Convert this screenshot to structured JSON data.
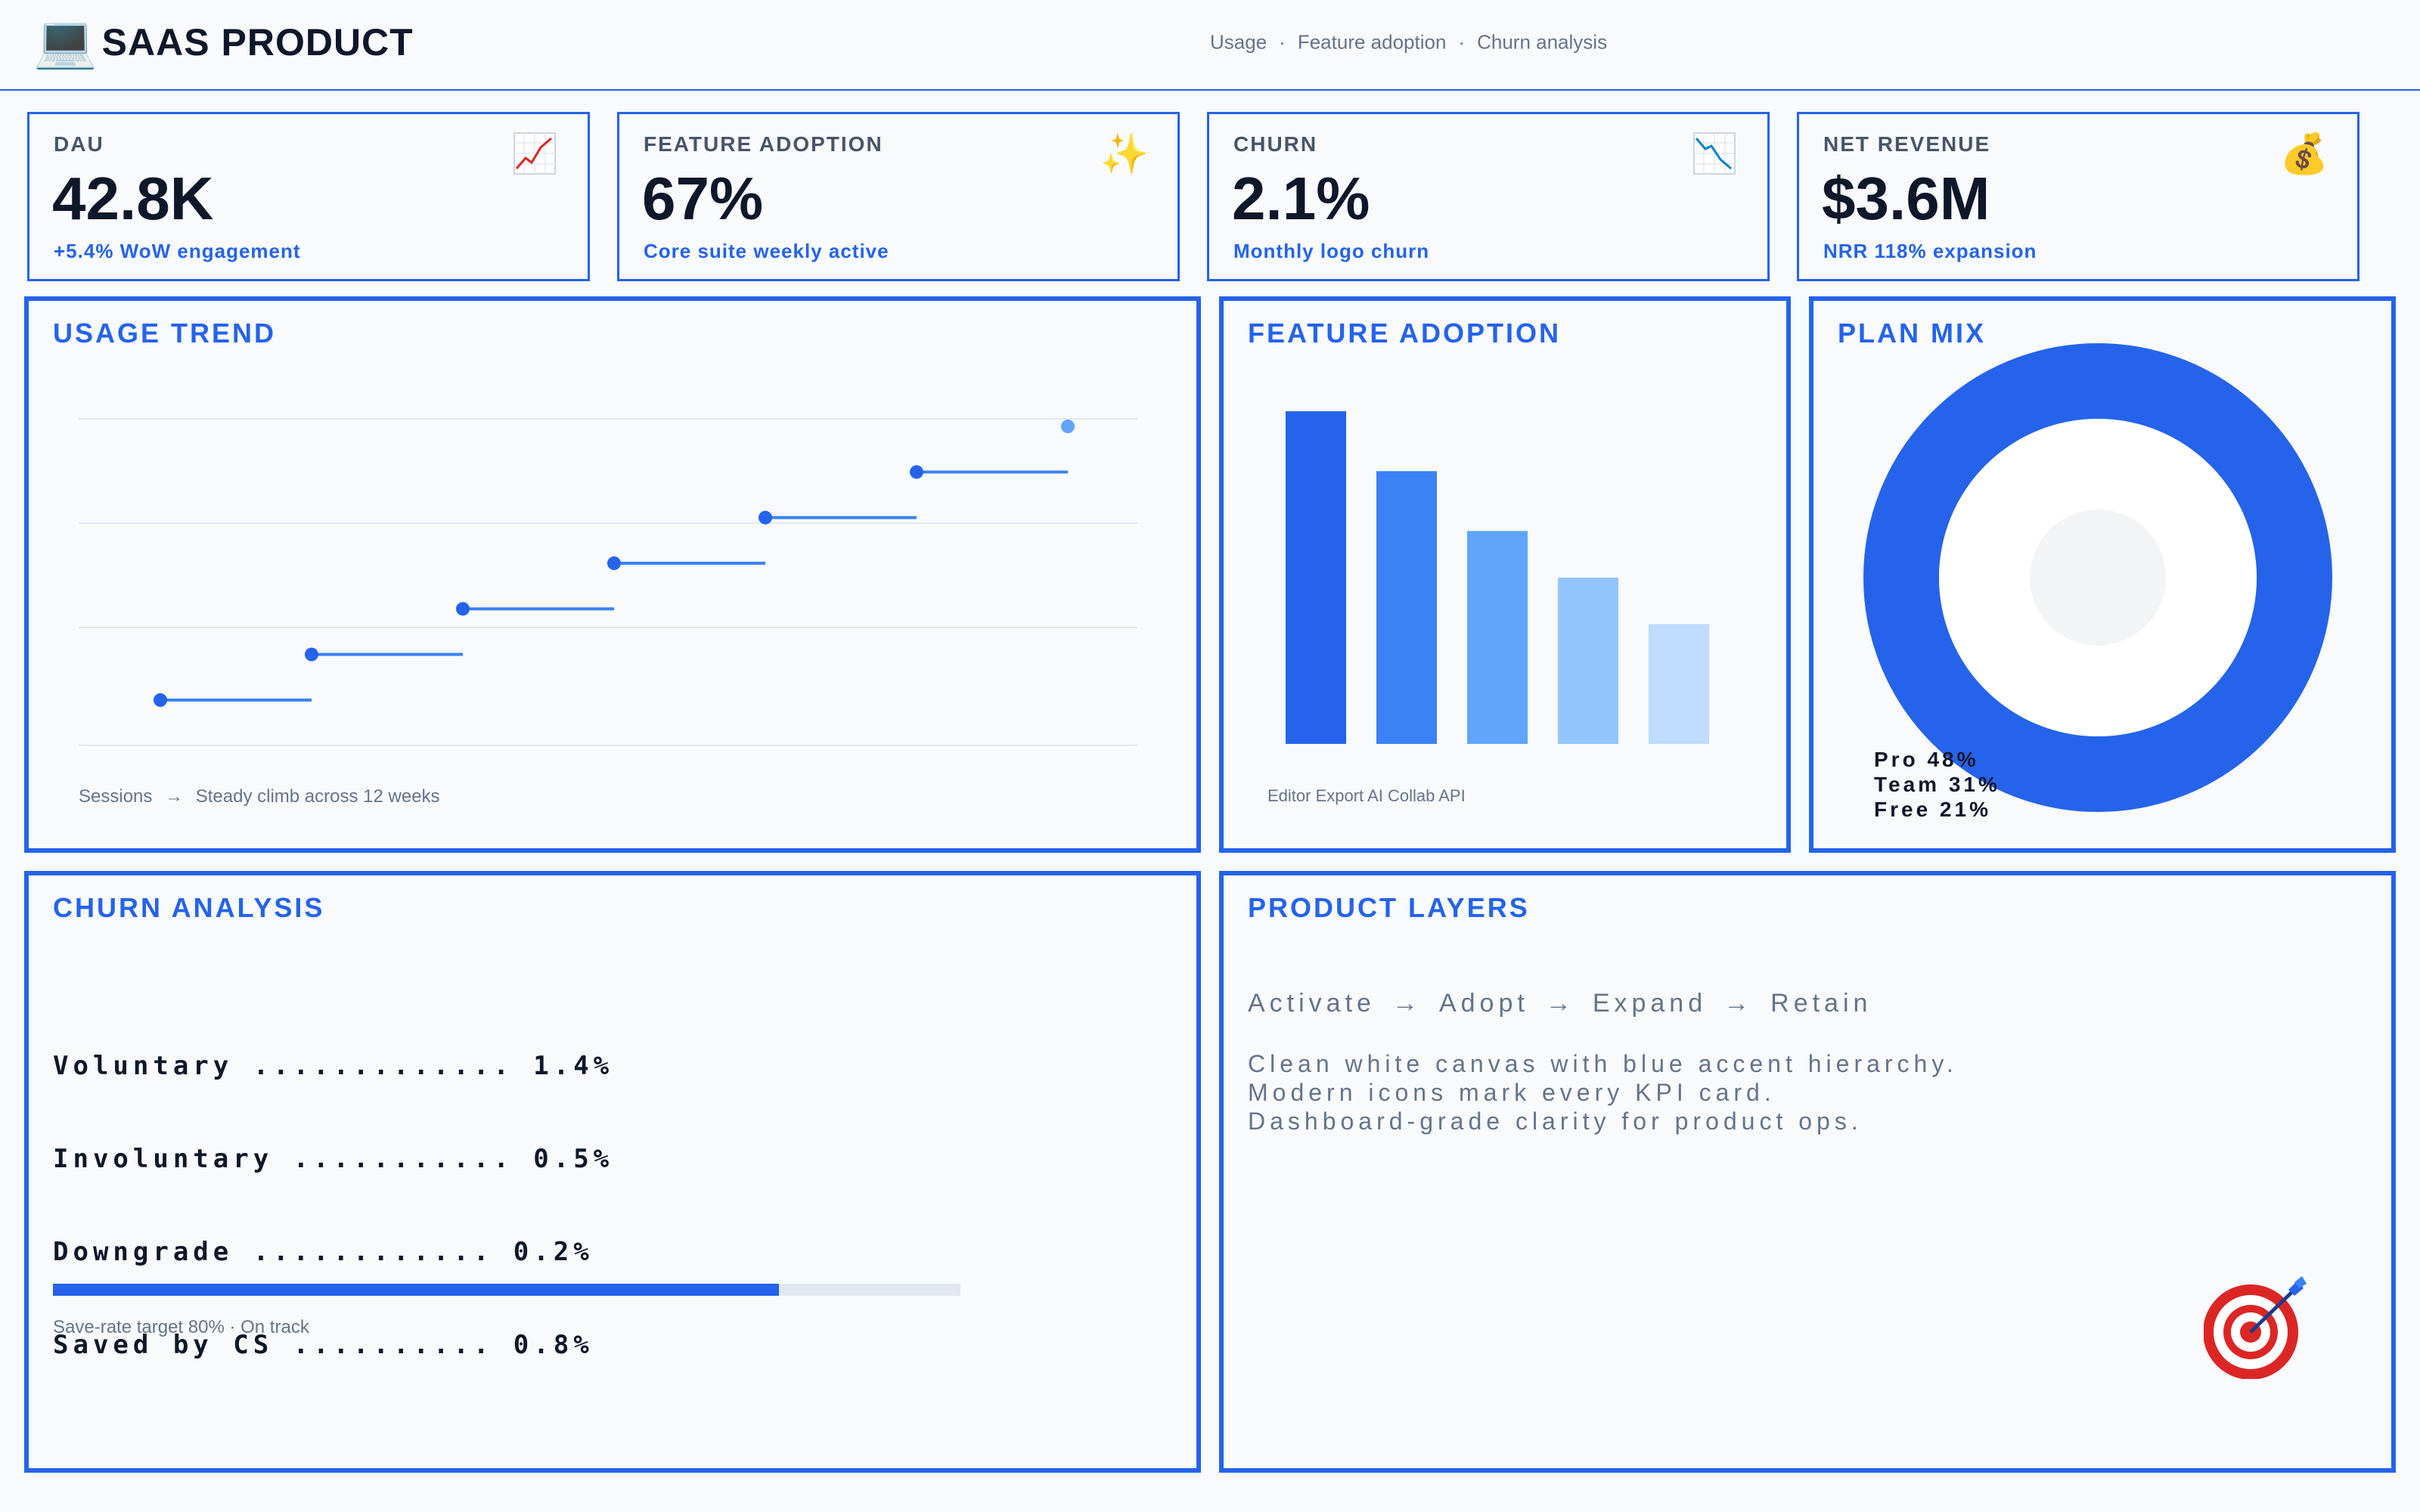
{
  "header": {
    "brand_icon": "laptop-icon",
    "brand_glyph": "💻",
    "title": "SAAS PRODUCT",
    "nav": [
      "Usage",
      "Feature adoption",
      "Churn analysis"
    ],
    "nav_separator": "·"
  },
  "kpis": [
    {
      "label": "DAU",
      "value": "42.8K",
      "sub": "+5.4% WoW engagement",
      "icon": "chart-increasing-icon"
    },
    {
      "label": "FEATURE ADOPTION",
      "value": "67%",
      "sub": "Core suite weekly active",
      "icon": "sparkles-icon",
      "glyph": "✨"
    },
    {
      "label": "CHURN",
      "value": "2.1%",
      "sub": "Monthly logo churn",
      "icon": "chart-decreasing-icon"
    },
    {
      "label": "NET REVENUE",
      "value": "$3.6M",
      "sub": "NRR 118% expansion",
      "icon": "money-bag-icon",
      "glyph": "💰"
    }
  ],
  "usage_trend": {
    "title": "USAGE TREND",
    "caption_series": "Sessions",
    "caption_arrow": "→",
    "caption_text": "Steady climb across 12 weeks"
  },
  "feature_adoption": {
    "title": "FEATURE ADOPTION",
    "caption": "Editor  Export  AI  Collab  API"
  },
  "plan_mix": {
    "title": "PLAN MIX",
    "legend": [
      "Pro 48%",
      "Team 31%",
      "Free 21%"
    ]
  },
  "churn_analysis": {
    "title": "CHURN ANALYSIS",
    "lines": [
      "Voluntary ............. 1.4%",
      "Involuntary ........... 0.5%",
      "Downgrade ............ 0.2%",
      "Saved by CS .......... 0.8%"
    ],
    "progress_value": 0.8,
    "progress_caption": "Save-rate target 80%  ·  On track"
  },
  "product_layers": {
    "title": "PRODUCT LAYERS",
    "flow": [
      "Activate",
      "Adopt",
      "Expand",
      "Retain"
    ],
    "flow_arrow": "→",
    "description": [
      "Clean white canvas with blue accent hierarchy.",
      "Modern icons mark every KPI card.",
      "Dashboard-grade clarity for product ops."
    ],
    "corner_icon": "target-icon"
  },
  "colors": {
    "accent": "#2563eb",
    "accent_mid": "#3b82f6",
    "accent_light": "#60a5fa",
    "accent_lighter": "#93c5fd",
    "accent_lightest": "#bfdbfe",
    "background": "#f8fafc",
    "text_dark": "#0f172a",
    "text_muted": "#64748b"
  },
  "chart_data": [
    {
      "type": "line",
      "series": [
        {
          "values": [
            1,
            2,
            3,
            4,
            5,
            6,
            7
          ]
        }
      ],
      "style": "step",
      "grid": true
    },
    {
      "type": "bar",
      "categories": [
        "Editor",
        "Export",
        "AI",
        "Collab",
        "API"
      ],
      "values": [
        100,
        82,
        64,
        50,
        36
      ]
    },
    {
      "type": "pie",
      "categories": [
        "Pro",
        "Team",
        "Free"
      ],
      "values": [
        48,
        31,
        21
      ]
    }
  ]
}
